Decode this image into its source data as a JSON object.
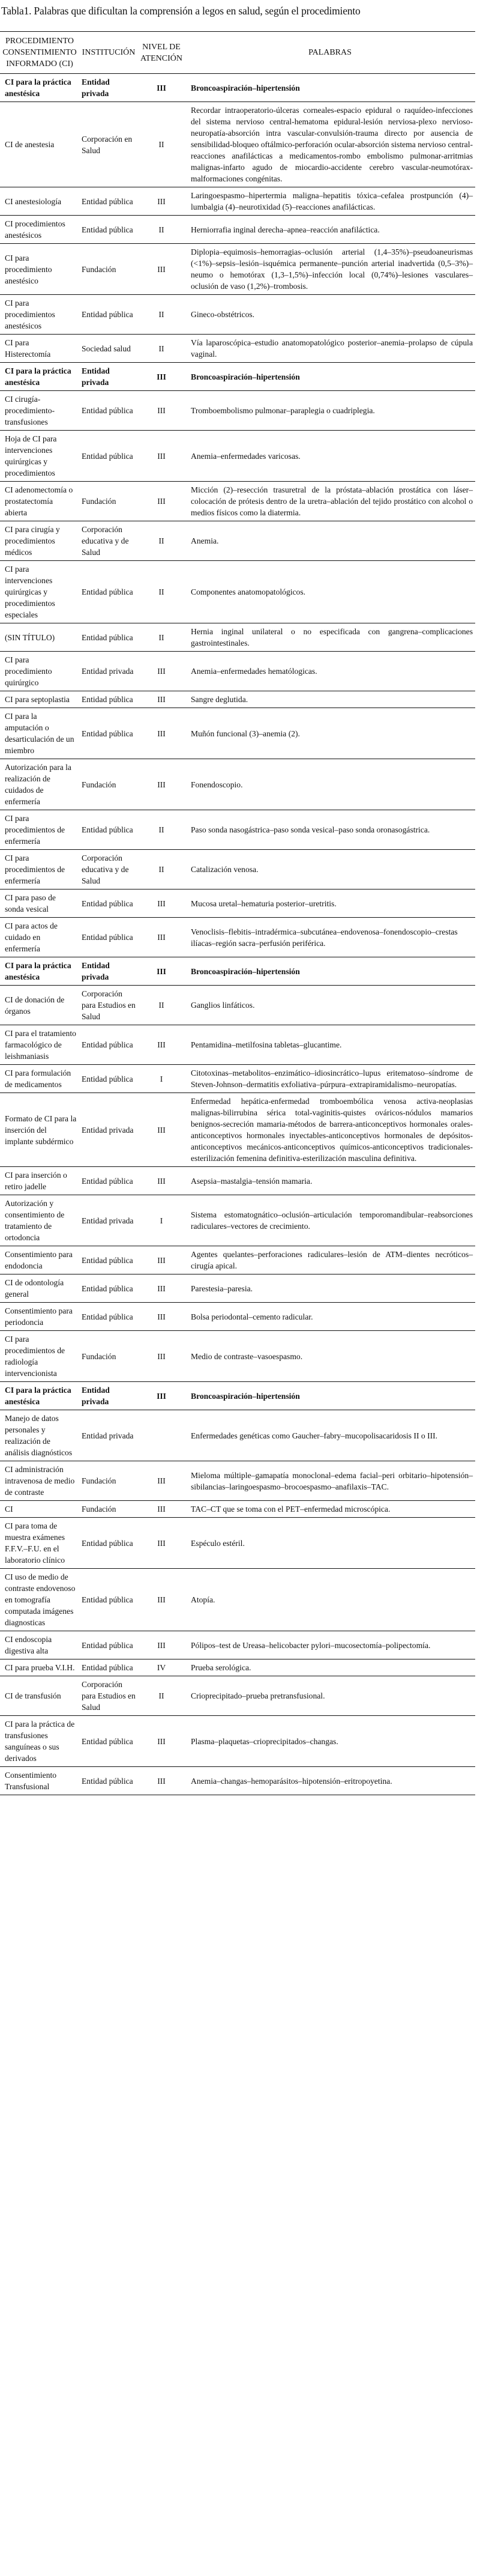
{
  "title": "Tabla1. Palabras que dificultan la comprensión a legos en salud, según el procedimiento",
  "headers": [
    "PROCEDIMIENTO CONSENTIMIENTO INFORMADO (CI)",
    "INSTITUCIÓN",
    "NIVEL DE ATENCIÓN",
    "PALABRAS"
  ],
  "rows": [
    [
      "CI para la práctica anestésica",
      "Entidad privada",
      "III",
      "Broncoaspiración–hipertensión"
    ],
    [
      "CI de anestesia",
      "Corporación en Salud",
      "II",
      "Recordar intraoperatorio-úlceras corneales-espacio epidural o raquídeo-infecciones del sistema nervioso central-hematoma epidural-lesión nerviosa-plexo nervioso-neuropatía-absorción intra vascular-convulsión-trauma directo por ausencia de sensibilidad-bloqueo oftálmico-perforación ocular-absorción sistema nervioso central-reacciones anafilácticas a medicamentos-rombo embolismo pulmonar-arritmias malignas-infarto agudo de miocardio-accidente cerebro vascular-neumotórax-malformaciones congénitas."
    ],
    [
      "CI anestesiología",
      "Entidad pública",
      "III",
      "Laringoespasmo–hipertermia maligna–hepatitis tóxica–cefalea prostpunción (4)–lumbalgia (4)–neurotixidad (5)–reacciones anafilácticas."
    ],
    [
      "CI procedimientos anestésicos",
      "Entidad pública",
      "II",
      "Herniorrafia inginal derecha–apnea–reacción anafiláctica."
    ],
    [
      "CI para procedimiento anestésico",
      "Fundación",
      "III",
      "Diplopia–equimosis–hemorragias–oclusión arterial (1,4–35%)–pseudoaneurismas (<1%)–sepsis–lesión–isquémica permanente–punción arterial inadvertida (0,5–3%)–neumo o hemotórax (1,3–1,5%)–infección local (0,74%)–lesiones vasculares–oclusión de vaso (1,2%)–trombosis."
    ],
    [
      "CI para procedimientos anestésicos",
      "Entidad pública",
      "II",
      "Gineco-obstétricos."
    ],
    [
      "CI para Histerectomía",
      "Sociedad salud",
      "II",
      "Vía laparoscópica–estudio anatomopatológico posterior–anemia–prolapso de cúpula vaginal."
    ],
    [
      "CI para la práctica anestésica",
      "Entidad privada",
      "III",
      "Broncoaspiración–hipertensión"
    ],
    [
      "CI cirugía-procedimiento-transfusiones",
      "Entidad pública",
      "III",
      "Tromboembolismo pulmonar–paraplegia o cuadriplegia."
    ],
    [
      "Hoja de CI para intervenciones quirúrgicas y procedimientos",
      "Entidad pública",
      "III",
      "Anemia–enfermedades varicosas."
    ],
    [
      "CI adenomectomía o prostatectomía abierta",
      "Fundación",
      "III",
      "Micción (2)–resección trasuretral de la próstata–ablación prostática con láser–colocación de prótesis dentro de la uretra–ablación del tejido prostático con alcohol o medios físicos como la diatermia."
    ],
    [
      "CI para cirugía y procedimientos médicos",
      "Corporación educativa y de Salud",
      "II",
      "Anemia."
    ],
    [
      "CI para intervenciones quirúrgicas y procedimientos especiales",
      "Entidad pública",
      "II",
      "Componentes anatomopatológicos."
    ],
    [
      "(SIN TÍTULO)",
      "Entidad pública",
      "II",
      "Hernia inginal unilateral o no especificada con gangrena–complicaciones gastrointestinales."
    ],
    [
      "CI para procedimiento quirúrgico",
      "Entidad privada",
      "III",
      "Anemia–enfermedades hematólogicas."
    ],
    [
      "CI para septoplastia",
      "Entidad pública",
      "III",
      "Sangre deglutida."
    ],
    [
      "CI para la amputación o desarticulación de un miembro",
      "Entidad pública",
      "III",
      "Muñón funcional (3)–anemia (2)."
    ],
    [
      "Autorización para la realización de cuidados de enfermería",
      "Fundación",
      "III",
      "Fonendoscopio."
    ],
    [
      "CI para procedimientos de enfermería",
      "Entidad pública",
      "II",
      "Paso sonda nasogástrica–paso sonda vesical–paso sonda oronasogástrica."
    ],
    [
      "CI para procedimientos de enfermería",
      "Corporación educativa y de Salud",
      "II",
      "Catalización venosa."
    ],
    [
      "CI para paso de sonda vesical",
      "Entidad pública",
      "III",
      "Mucosa uretal–hematuria posterior–uretritis."
    ],
    [
      "CI para actos de cuidado en enfermería",
      "Entidad pública",
      "III",
      "Venoclisis–flebitis–intradérmica–subcutánea–endovenosa–fonendoscopio–crestas ilíacas–región sacra–perfusión periférica."
    ],
    [
      "CI para la práctica anestésica",
      "Entidad privada",
      "III",
      "Broncoaspiración–hipertensión"
    ],
    [
      "CI de donación de órganos",
      "Corporación para Estudios en Salud",
      "II",
      "Ganglios linfáticos."
    ],
    [
      "CI para el tratamiento farmacológico de leishmaniasis",
      "Entidad pública",
      "III",
      "Pentamidina–metilfosina tabletas–glucantime."
    ],
    [
      "CI para formulación de medicamentos",
      "Entidad pública",
      "I",
      "Citotoxinas–metabolitos–enzimático–idiosincrático–lupus eritematoso–síndrome de Steven-Johnson–dermatitis exfoliativa–púrpura–extrapiramidalismo–neuropatías."
    ],
    [
      "Formato de CI para la inserción del implante subdérmico",
      "Entidad privada",
      "III",
      "Enfermedad hepática-enfermedad tromboembólica venosa activa-neoplasias malignas-bilirrubina sérica total-vaginitis-quistes ováricos-nódulos mamarios benignos-secreción mamaria-métodos de barrera-anticonceptivos hormonales orales-anticonceptivos hormonales inyectables-anticonceptivos hormonales de depósitos-anticonceptivos mecánicos-anticonceptivos químicos-anticonceptivos tradicionales-esterilización femenina definitiva-esterilización masculina definitiva."
    ],
    [
      "CI para inserción o retiro jadelle",
      "Entidad pública",
      "III",
      "Asepsia–mastalgia–tensión mamaria."
    ],
    [
      "Autorización y consentimiento de tratamiento de ortodoncia",
      "Entidad privada",
      "I",
      "Sistema estomatognático–oclusión–articulación temporomandibular–reabsorciones radiculares–vectores de crecimiento."
    ],
    [
      "Consentimiento para endodoncia",
      "Entidad pública",
      "III",
      "Agentes quelantes–perforaciones radiculares–lesión de ATM–dientes necróticos–cirugía apical."
    ],
    [
      "CI de odontología general",
      "Entidad pública",
      "III",
      "Parestesia–paresia."
    ],
    [
      "Consentimiento para periodoncia",
      "Entidad pública",
      "III",
      "Bolsa periodontal–cemento radicular."
    ],
    [
      "CI para procedimientos de radiología intervencionista",
      "Fundación",
      "III",
      "Medio de contraste–vasoespasmo."
    ],
    [
      "CI para la práctica anestésica",
      "Entidad privada",
      "III",
      "Broncoaspiración–hipertensión"
    ],
    [
      "Manejo de datos personales y realización de análisis diagnósticos",
      "Entidad privada",
      "",
      "Enfermedades genéticas como Gaucher–fabry–mucopolisacaridosis II o III."
    ],
    [
      "CI administración intravenosa de medio de contraste",
      "Fundación",
      "III",
      "Mieloma múltiple–gamapatía monoclonal–edema facial–peri orbitario–hipotensión–sibilancias–laringoespasmo–brocoespasmo–anafilaxis–TAC."
    ],
    [
      "CI",
      "Fundación",
      "III",
      "TAC–CT que se toma con el PET–enfermedad microscópica."
    ],
    [
      "CI para toma de muestra exámenes F.F.V.–F.U. en el laboratorio clínico",
      "Entidad pública",
      "III",
      "Espéculo estéril."
    ],
    [
      "CI uso de medio de contraste endovenoso en tomografía computada imágenes diagnosticas",
      "Entidad pública",
      "III",
      "Atopía."
    ],
    [
      "CI endoscopia digestiva alta",
      "Entidad pública",
      "III",
      "Pólipos–test de Ureasa–helicobacter pylori–mucosectomía–polipectomía."
    ],
    [
      "CI para prueba V.I.H.",
      "Entidad pública",
      "IV",
      "Prueba serológica."
    ],
    [
      "CI de transfusión",
      "Corporación para Estudios en Salud",
      "II",
      "Crioprecipitado–prueba pretransfusional."
    ],
    [
      "CI para la práctica de transfusiones sanguíneas o sus derivados",
      "Entidad pública",
      "III",
      "Plasma–plaquetas–crioprecipitados–changas."
    ],
    [
      "Consentimiento Transfusional",
      "Entidad pública",
      "III",
      "Anemia–changas–hemoparásitos–hipotensión–eritropoyetina."
    ]
  ]
}
